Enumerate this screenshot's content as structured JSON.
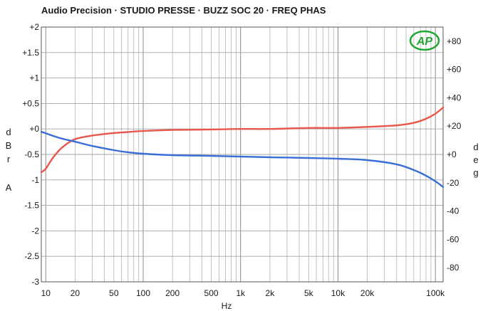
{
  "chart_data": {
    "type": "line",
    "title": "Audio Precision · STUDIO PRESSE · BUZZ SOC 20 · FREQ PHAS",
    "logo": "AP",
    "xlabel": "Hz",
    "ylabel_left": [
      "d",
      "B",
      "r",
      "A"
    ],
    "ylabel_right": [
      "d",
      "e",
      "g"
    ],
    "x_scale": "log",
    "xlim": [
      9,
      120000
    ],
    "ylim_left": [
      -3,
      2
    ],
    "ylim_right": [
      -90,
      90
    ],
    "grid": true,
    "x_ticks": [
      {
        "value": 10,
        "label": "10"
      },
      {
        "value": 20,
        "label": "20"
      },
      {
        "value": 50,
        "label": "50"
      },
      {
        "value": 100,
        "label": "100"
      },
      {
        "value": 200,
        "label": "200"
      },
      {
        "value": 500,
        "label": "500"
      },
      {
        "value": 1000,
        "label": "1k"
      },
      {
        "value": 2000,
        "label": "2k"
      },
      {
        "value": 5000,
        "label": "5k"
      },
      {
        "value": 10000,
        "label": "10k"
      },
      {
        "value": 20000,
        "label": "20k"
      },
      {
        "value": 100000,
        "label": "100k"
      }
    ],
    "y_left_ticks": [
      {
        "value": 2,
        "label": "+2"
      },
      {
        "value": 1.5,
        "label": "+1.5"
      },
      {
        "value": 1,
        "label": "+1"
      },
      {
        "value": 0.5,
        "label": "+0.5"
      },
      {
        "value": 0,
        "label": "+0"
      },
      {
        "value": -0.5,
        "label": "-0.5"
      },
      {
        "value": -1,
        "label": "-1"
      },
      {
        "value": -1.5,
        "label": "-1.5"
      },
      {
        "value": -2,
        "label": "-2"
      },
      {
        "value": -2.5,
        "label": "-2.5"
      },
      {
        "value": -3,
        "label": "-3"
      }
    ],
    "y_right_ticks": [
      {
        "value": 80,
        "label": "+80"
      },
      {
        "value": 60,
        "label": "+60"
      },
      {
        "value": 40,
        "label": "+40"
      },
      {
        "value": 20,
        "label": "+20"
      },
      {
        "value": 0,
        "label": "+0"
      },
      {
        "value": -20,
        "label": "-20"
      },
      {
        "value": -40,
        "label": "-40"
      },
      {
        "value": -60,
        "label": "-60"
      },
      {
        "value": -80,
        "label": "-80"
      }
    ],
    "series": [
      {
        "axis": "left",
        "color": "#e8574a",
        "x": [
          9,
          10,
          12,
          15,
          20,
          30,
          50,
          70,
          100,
          200,
          500,
          1000,
          2000,
          5000,
          10000,
          20000,
          40000,
          60000,
          80000,
          100000,
          120000
        ],
        "y": [
          -0.85,
          -0.78,
          -0.55,
          -0.35,
          -0.2,
          -0.13,
          -0.08,
          -0.06,
          -0.04,
          -0.02,
          -0.01,
          0.0,
          0.0,
          0.02,
          0.02,
          0.04,
          0.07,
          0.12,
          0.2,
          0.3,
          0.42
        ]
      },
      {
        "axis": "right",
        "color": "#3a6ed6",
        "x": [
          9,
          10,
          12,
          15,
          20,
          30,
          50,
          70,
          100,
          200,
          500,
          1000,
          2000,
          5000,
          10000,
          20000,
          40000,
          60000,
          80000,
          100000,
          120000
        ],
        "y": [
          16,
          15,
          13,
          11,
          9,
          6,
          3,
          1.5,
          0.5,
          -0.5,
          -1,
          -1.5,
          -2,
          -2.5,
          -3,
          -4,
          -7,
          -11,
          -15,
          -19,
          -23
        ]
      }
    ]
  }
}
